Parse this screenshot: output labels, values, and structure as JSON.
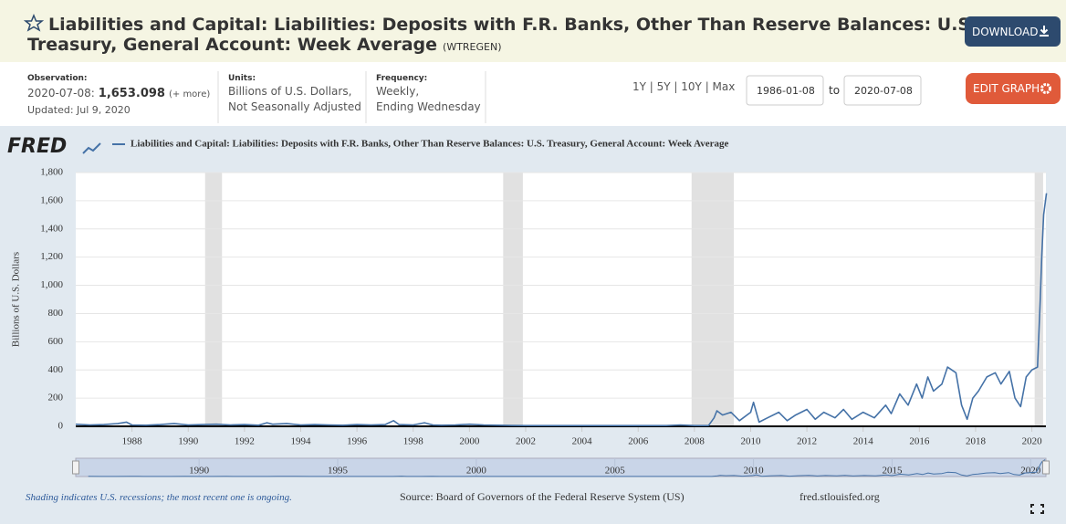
{
  "header": {
    "title_line1": "Liabilities and Capital: Liabilities: Deposits with F.R. Banks, Other Than Reserve Balances: U.S.",
    "title_line2": "Treasury, General Account: Week Average",
    "series_id": "(WTREGEN)",
    "download": "DOWNLOAD"
  },
  "info": {
    "observation_label": "Observation:",
    "observation_date": "2020-07-08:",
    "observation_value": "1,653.098",
    "more": "(+ more)",
    "updated": "Updated: Jul 9, 2020",
    "units_label": "Units:",
    "units": [
      "Billions of U.S. Dollars,",
      "Not Seasonally Adjusted"
    ],
    "frequency_label": "Frequency:",
    "frequency": [
      "Weekly,",
      "Ending Wednesday"
    ],
    "ranges": "1Y | 5Y | 10Y | Max",
    "date_from": "1986-01-08",
    "to": "to",
    "date_to": "2020-07-08",
    "edit_graph": "EDIT GRAPH"
  },
  "chart_data": {
    "type": "line",
    "logo": "FRED",
    "y_label": "Billions of U.S. Dollars",
    "series": [
      {
        "name": "Liabilities and Capital: Liabilities: Deposits with F.R. Banks, Other Than Reserve Balances: U.S. Treasury, General Account: Week Average",
        "color": "#4572a7",
        "x": [
          1986.0,
          1986.5,
          1987.0,
          1987.5,
          1987.8,
          1988.0,
          1988.5,
          1989.0,
          1989.5,
          1990.0,
          1990.5,
          1991.0,
          1991.5,
          1992.0,
          1992.5,
          1992.8,
          1993.0,
          1993.5,
          1994.0,
          1994.5,
          1995.0,
          1995.5,
          1996.0,
          1996.5,
          1997.0,
          1997.3,
          1997.5,
          1998.0,
          1998.4,
          1998.7,
          1999.0,
          1999.5,
          2000.0,
          2000.5,
          2001.0,
          2001.5,
          2002.0,
          2002.5,
          2003.0,
          2003.5,
          2004.0,
          2004.5,
          2005.0,
          2005.5,
          2006.0,
          2006.5,
          2007.0,
          2007.5,
          2008.0,
          2008.5,
          2008.7,
          2008.8,
          2009.0,
          2009.3,
          2009.6,
          2010.0,
          2010.1,
          2010.3,
          2010.6,
          2011.0,
          2011.3,
          2011.6,
          2012.0,
          2012.3,
          2012.6,
          2013.0,
          2013.3,
          2013.6,
          2014.0,
          2014.4,
          2014.8,
          2015.0,
          2015.3,
          2015.6,
          2015.9,
          2016.1,
          2016.3,
          2016.5,
          2016.8,
          2017.0,
          2017.3,
          2017.5,
          2017.7,
          2017.9,
          2018.1,
          2018.4,
          2018.7,
          2018.9,
          2019.2,
          2019.4,
          2019.6,
          2019.8,
          2020.0,
          2020.2,
          2020.3,
          2020.35,
          2020.42,
          2020.52
        ],
        "values": [
          15,
          10,
          12,
          20,
          30,
          10,
          8,
          12,
          20,
          10,
          12,
          15,
          10,
          12,
          8,
          25,
          15,
          20,
          10,
          12,
          10,
          8,
          12,
          10,
          12,
          40,
          12,
          10,
          25,
          10,
          8,
          10,
          15,
          10,
          8,
          6,
          5,
          5,
          5,
          5,
          5,
          5,
          5,
          5,
          5,
          5,
          5,
          10,
          5,
          5,
          60,
          110,
          80,
          100,
          40,
          100,
          170,
          30,
          60,
          100,
          40,
          80,
          120,
          50,
          100,
          60,
          120,
          50,
          100,
          60,
          150,
          90,
          230,
          150,
          300,
          200,
          350,
          250,
          300,
          420,
          380,
          150,
          50,
          200,
          250,
          350,
          380,
          300,
          390,
          200,
          140,
          350,
          400,
          420,
          900,
          1200,
          1500,
          1653.098
        ]
      }
    ],
    "xlim": [
      1986,
      2020.5
    ],
    "xticks": [
      1988,
      1990,
      1992,
      1994,
      1996,
      1998,
      2000,
      2002,
      2004,
      2006,
      2008,
      2010,
      2012,
      2014,
      2016,
      2018,
      2020
    ],
    "ylim": [
      0,
      1800
    ],
    "yticks": [
      0,
      200,
      400,
      600,
      800,
      {
        "value": 1000,
        "label": "1,000"
      },
      {
        "value": 1200,
        "label": "1,200"
      },
      {
        "value": 1400,
        "label": "1,400"
      },
      {
        "value": 1600,
        "label": "1,600"
      },
      {
        "value": 1800,
        "label": "1,800"
      }
    ],
    "grid": true,
    "recessions": [
      [
        1990.6,
        1991.2
      ],
      [
        2001.2,
        2001.9
      ],
      [
        2007.9,
        2009.4
      ],
      [
        2020.1,
        2020.4
      ]
    ],
    "recession_color": "#e1e1e1",
    "navigator": {
      "xlim": [
        1985.55,
        2020.55
      ],
      "xticks": [
        1990,
        1995,
        2000,
        2005,
        2010,
        2015,
        2020
      ]
    }
  },
  "footer": {
    "note": "Shading indicates U.S. recessions; the most recent one is ongoing.",
    "source": "Source: Board of Governors of the Federal Reserve System (US)",
    "site": "fred.stlouisfed.org"
  }
}
